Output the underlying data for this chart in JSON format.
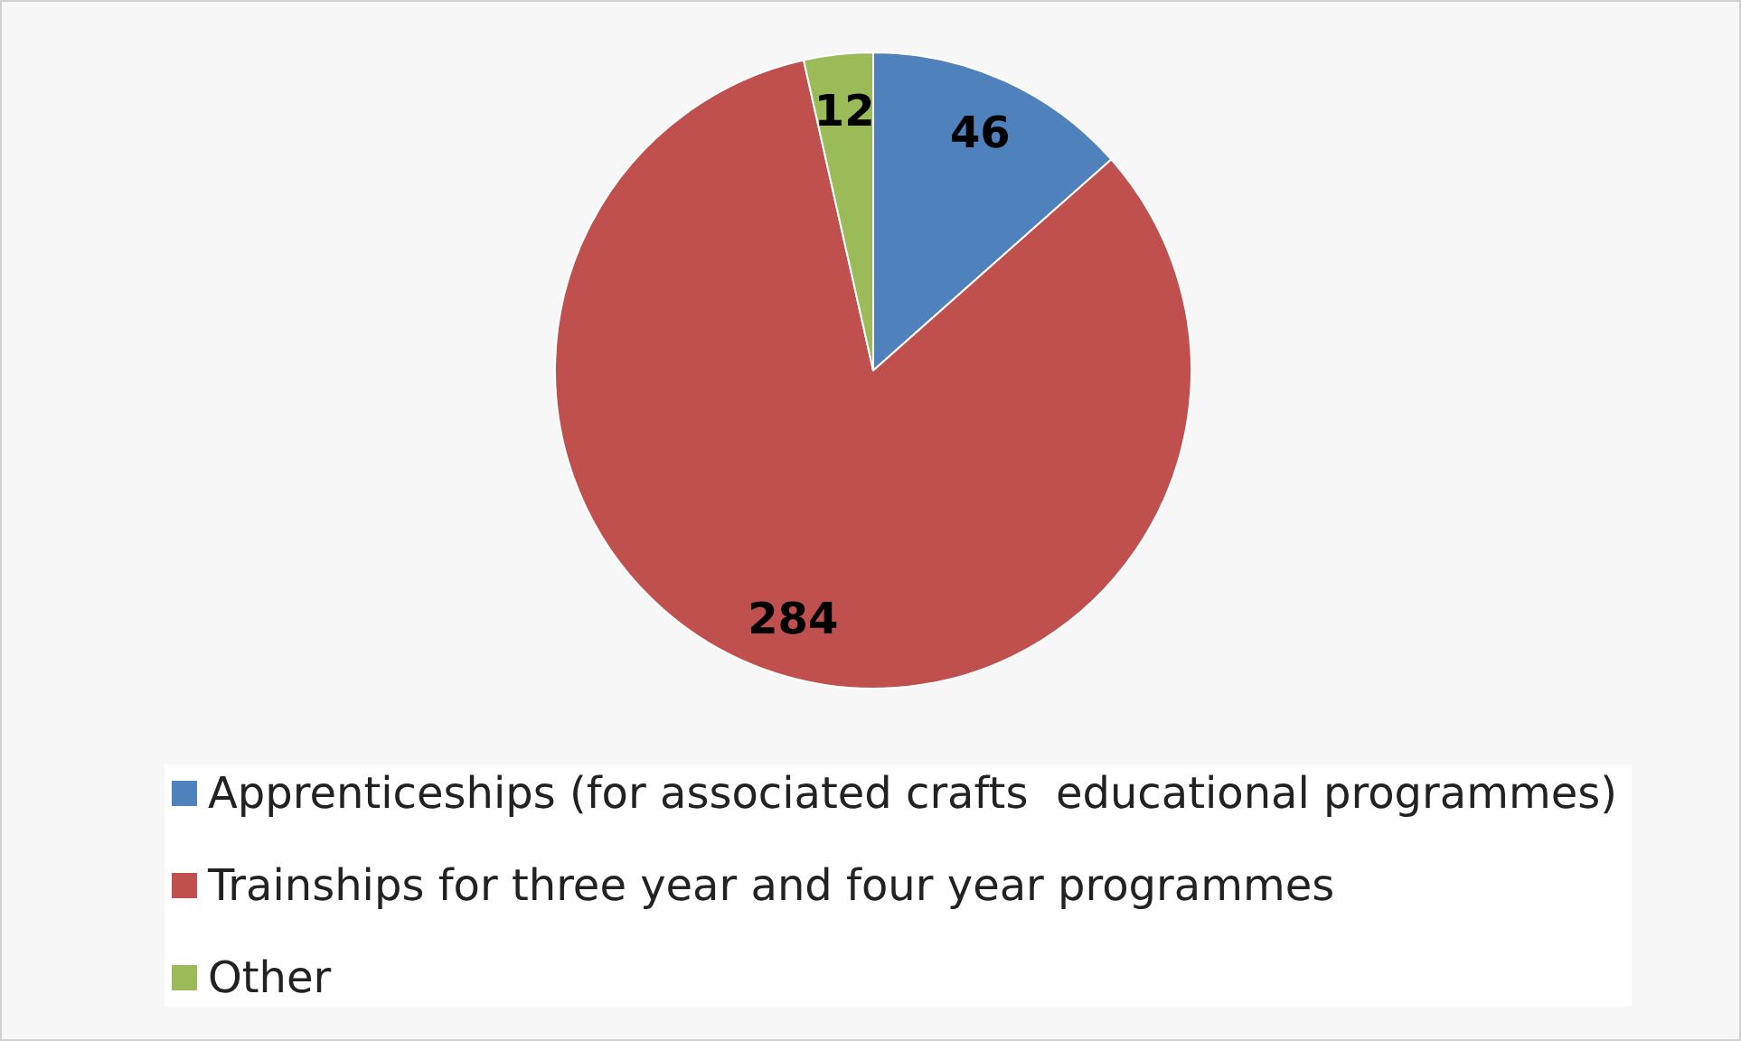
{
  "chart_data": {
    "type": "pie",
    "categories": [
      "Apprenticeships (for associated crafts  educational programmes)",
      "Trainships for three year and four year programmes",
      "Other"
    ],
    "values": [
      46,
      284,
      12
    ],
    "colors": [
      "#4f81bd",
      "#c0504d",
      "#9bbb59"
    ],
    "data_labels": true,
    "legend": "bottom"
  }
}
